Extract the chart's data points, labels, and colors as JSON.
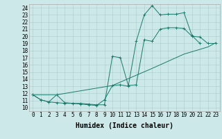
{
  "xlabel": "Humidex (Indice chaleur)",
  "background_color": "#cce8e8",
  "grid_color": "#aacccc",
  "line_color": "#1a7a6a",
  "xlim": [
    -0.5,
    23.5
  ],
  "ylim": [
    9.5,
    24.5
  ],
  "xticks": [
    0,
    1,
    2,
    3,
    4,
    5,
    6,
    7,
    8,
    9,
    10,
    11,
    12,
    13,
    14,
    15,
    16,
    17,
    18,
    19,
    20,
    21,
    22,
    23
  ],
  "yticks": [
    10,
    11,
    12,
    13,
    14,
    15,
    16,
    17,
    18,
    19,
    20,
    21,
    22,
    23,
    24
  ],
  "line1_x": [
    0,
    1,
    2,
    3,
    4,
    5,
    6,
    7,
    8,
    9,
    10,
    11,
    12,
    13,
    14,
    15,
    16,
    17,
    18,
    19,
    20,
    21
  ],
  "line1_y": [
    11.8,
    11.1,
    10.8,
    10.7,
    10.6,
    10.6,
    10.5,
    10.4,
    10.3,
    11.1,
    13.1,
    13.2,
    13.0,
    19.3,
    23.0,
    24.3,
    23.0,
    23.1,
    23.1,
    23.3,
    20.1,
    19.0
  ],
  "line2_x": [
    0,
    1,
    2,
    3,
    4,
    5,
    6,
    7,
    8,
    9,
    10,
    11,
    12,
    13,
    14,
    15,
    16,
    17,
    18,
    19,
    20,
    21,
    22,
    23
  ],
  "line2_y": [
    11.8,
    11.1,
    10.8,
    11.8,
    10.7,
    10.6,
    10.6,
    10.5,
    10.4,
    10.4,
    17.2,
    17.0,
    13.1,
    13.2,
    19.5,
    19.3,
    21.0,
    21.2,
    21.2,
    21.1,
    20.0,
    19.9,
    19.0,
    19.0
  ],
  "line3_x": [
    0,
    3,
    10,
    15,
    19,
    22,
    23
  ],
  "line3_y": [
    11.8,
    11.8,
    13.1,
    15.5,
    17.5,
    18.5,
    19.1
  ],
  "xlabel_fontsize": 7,
  "tick_fontsize": 5.5
}
